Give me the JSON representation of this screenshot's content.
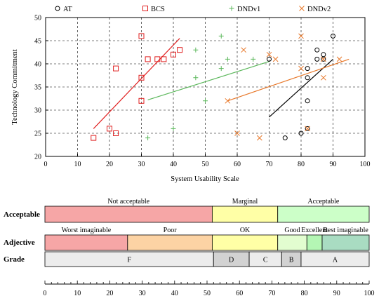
{
  "chart_data": [
    {
      "type": "scatter",
      "xlabel": "System Usability Scale",
      "ylabel": "Technology Commitment",
      "xlim": [
        0,
        100
      ],
      "ylim": [
        20,
        50
      ],
      "x_ticks": [
        0,
        10,
        20,
        30,
        40,
        50,
        60,
        70,
        80,
        90,
        100
      ],
      "y_ticks": [
        20,
        25,
        30,
        35,
        40,
        45,
        50
      ],
      "grid": true,
      "legend_position": "top",
      "series": [
        {
          "name": "AT",
          "marker": "circle",
          "color": "#000000",
          "points": [
            [
              70,
              41
            ],
            [
              75,
              24
            ],
            [
              80,
              25
            ],
            [
              82,
              39
            ],
            [
              82,
              37
            ],
            [
              82,
              32
            ],
            [
              82,
              26
            ],
            [
              85,
              43
            ],
            [
              85,
              41
            ],
            [
              87,
              41
            ],
            [
              87,
              42
            ],
            [
              90,
              46
            ]
          ],
          "trend": [
            [
              70,
              28.5
            ],
            [
              90,
              41
            ]
          ]
        },
        {
          "name": "BCS",
          "marker": "square",
          "color": "#e02020",
          "points": [
            [
              15,
              24
            ],
            [
              20,
              26
            ],
            [
              22,
              39
            ],
            [
              22,
              25
            ],
            [
              30,
              46
            ],
            [
              30,
              37
            ],
            [
              30,
              32
            ],
            [
              32,
              41
            ],
            [
              35,
              41
            ],
            [
              37,
              41
            ],
            [
              40,
              42
            ],
            [
              42,
              43
            ]
          ],
          "trend": [
            [
              15,
              26
            ],
            [
              42,
              45.5
            ]
          ]
        },
        {
          "name": "DNDv1",
          "marker": "plus",
          "color": "#5cb85c",
          "points": [
            [
              32,
              24
            ],
            [
              40,
              26
            ],
            [
              47,
              43
            ],
            [
              47,
              37
            ],
            [
              50,
              32
            ],
            [
              55,
              46
            ],
            [
              55,
              39
            ],
            [
              57,
              41
            ],
            [
              65,
              41
            ]
          ],
          "trend": [
            [
              32,
              32.2
            ],
            [
              70,
              40.5
            ]
          ]
        },
        {
          "name": "DNDv2",
          "marker": "cross",
          "color": "#e8782a",
          "points": [
            [
              57,
              32
            ],
            [
              60,
              25
            ],
            [
              62,
              43
            ],
            [
              67,
              24
            ],
            [
              70,
              42
            ],
            [
              72,
              41
            ],
            [
              80,
              46
            ],
            [
              80,
              39
            ],
            [
              82,
              26
            ],
            [
              87,
              41
            ],
            [
              87,
              37
            ],
            [
              92,
              41
            ]
          ],
          "trend": [
            [
              57,
              32
            ],
            [
              95,
              41
            ]
          ]
        }
      ]
    },
    {
      "type": "table",
      "rows": [
        {
          "label": "Acceptable",
          "bands": [
            {
              "start": 0,
              "end": 51.6,
              "label": "Not acceptable",
              "color": "#f6a6a6"
            },
            {
              "start": 51.6,
              "end": 71.8,
              "label": "Marginal",
              "color": "#ffffa6"
            },
            {
              "start": 71.8,
              "end": 100,
              "label": "Acceptable",
              "color": "#ccffc8"
            }
          ]
        },
        {
          "label": "Adjective",
          "bands": [
            {
              "start": 0,
              "end": 25.5,
              "label": "Worst imaginable",
              "color": "#f6a6a6"
            },
            {
              "start": 25.5,
              "end": 51.6,
              "label": "Poor",
              "color": "#fcd3a4"
            },
            {
              "start": 51.6,
              "end": 71.8,
              "label": "OK",
              "color": "#ffffa6"
            },
            {
              "start": 71.8,
              "end": 80.8,
              "label": "Good",
              "color": "#e2fdd0"
            },
            {
              "start": 80.8,
              "end": 85.5,
              "label": "Excellent",
              "color": "#b4f6b4"
            },
            {
              "start": 85.5,
              "end": 100,
              "label": "Best imaginable",
              "color": "#a9dcc2"
            }
          ]
        },
        {
          "label": "Grade",
          "bands": [
            {
              "start": 0,
              "end": 52,
              "label": "F",
              "color": "#ececec"
            },
            {
              "start": 52,
              "end": 63,
              "label": "D",
              "color": "#d2d2d2"
            },
            {
              "start": 63,
              "end": 73,
              "label": "C",
              "color": "#ececec"
            },
            {
              "start": 73,
              "end": 79,
              "label": "B",
              "color": "#d2d2d2"
            },
            {
              "start": 79,
              "end": 100,
              "label": "A",
              "color": "#ececec"
            }
          ]
        }
      ],
      "axis_ticks": [
        0,
        10,
        20,
        30,
        40,
        50,
        60,
        70,
        80,
        90,
        100
      ],
      "xlim": [
        0,
        100
      ]
    }
  ]
}
